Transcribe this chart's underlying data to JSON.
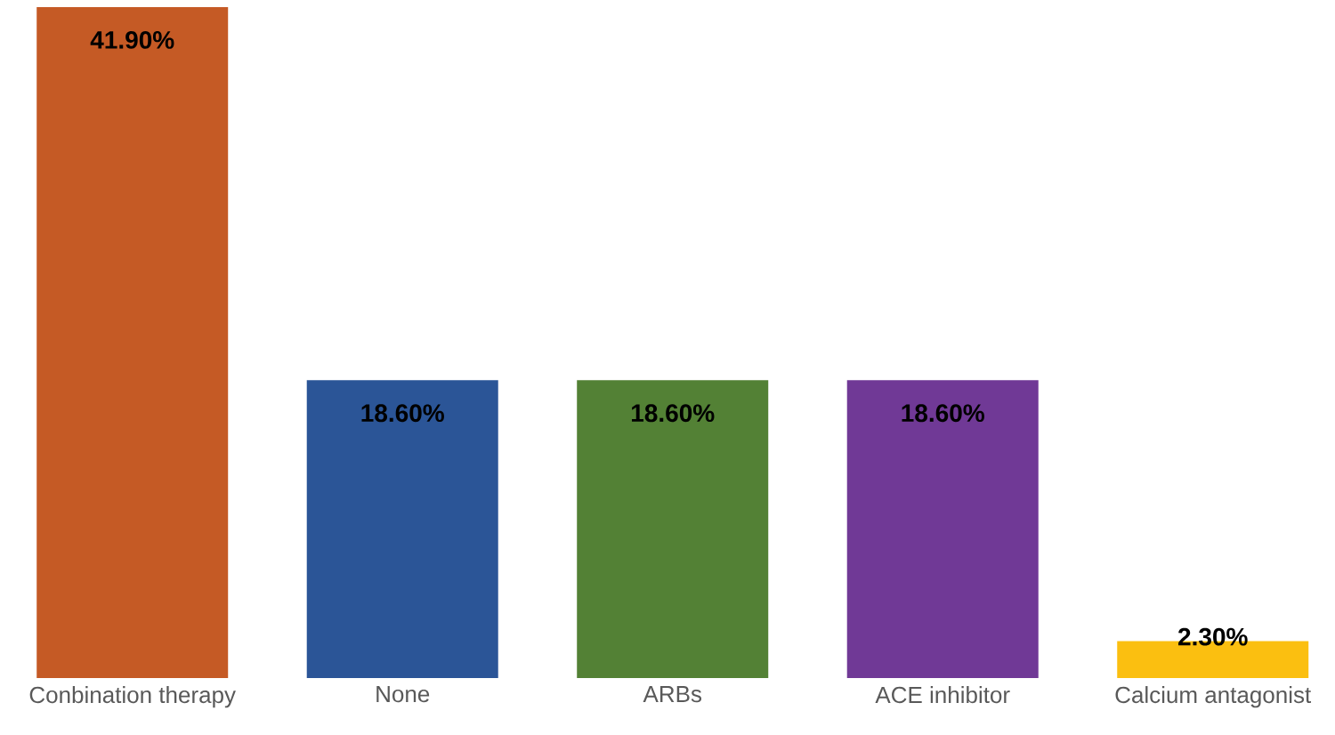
{
  "chart_data": {
    "type": "bar",
    "categories": [
      "Conbination therapy",
      "None",
      "ARBs",
      "ACE inhibitor",
      "Calcium antagonist"
    ],
    "values": [
      41.9,
      18.6,
      18.6,
      18.6,
      2.3
    ],
    "value_labels": [
      "41.90%",
      "18.60%",
      "18.60%",
      "18.60%",
      "2.30%"
    ],
    "colors": [
      "#c55a25",
      "#2b5597",
      "#538135",
      "#703996",
      "#fbbf10"
    ]
  }
}
